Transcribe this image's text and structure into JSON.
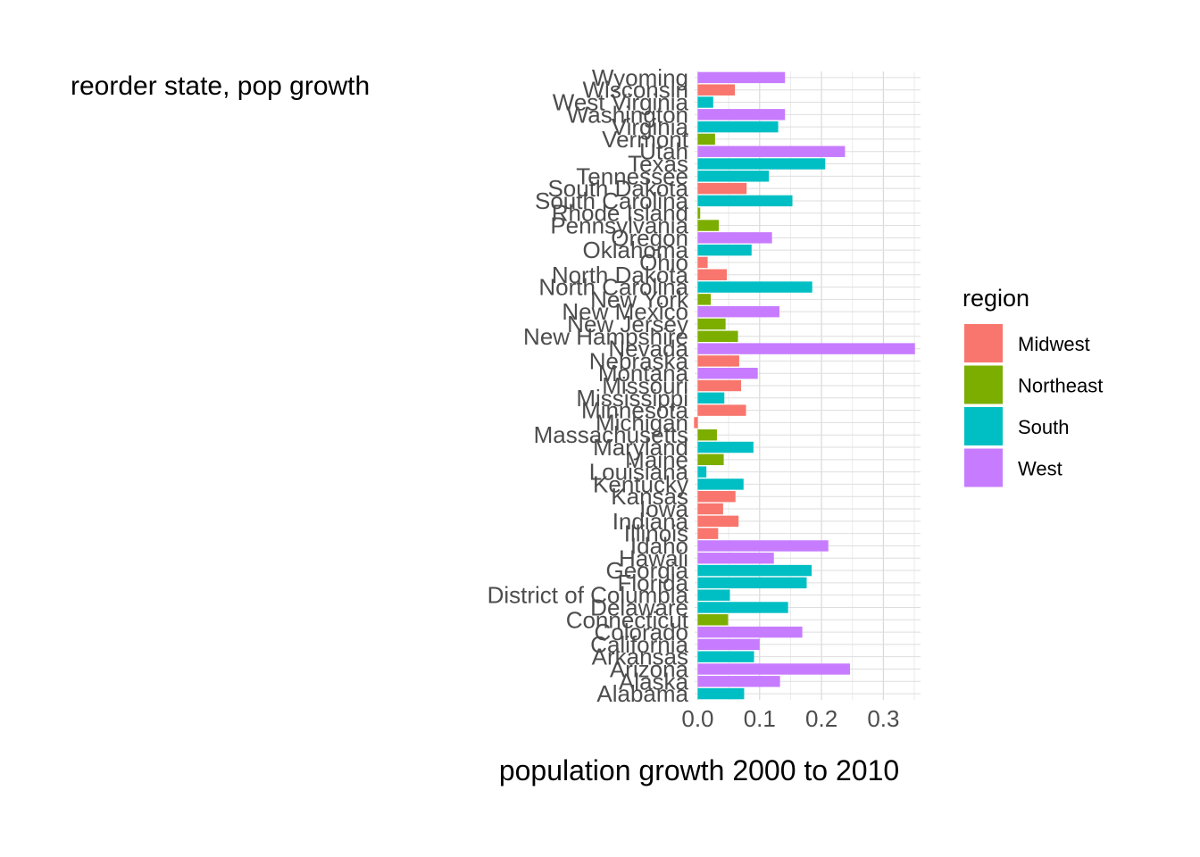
{
  "chart_data": {
    "type": "bar",
    "orientation": "horizontal",
    "title": "reorder state, pop growth",
    "xlabel": "population growth 2000 to 2010",
    "ylabel": "",
    "xlim": [
      -0.005,
      0.36
    ],
    "xticks": [
      "0.0",
      "0.1",
      "0.2",
      "0.3"
    ],
    "grid": true,
    "legend": {
      "title": "region",
      "position": "right",
      "entries": [
        {
          "name": "Midwest",
          "color": "#F8766D"
        },
        {
          "name": "Northeast",
          "color": "#7CAE00"
        },
        {
          "name": "South",
          "color": "#00BFC4"
        },
        {
          "name": "West",
          "color": "#C77CFF"
        }
      ]
    },
    "categories": [
      "Alabama",
      "Alaska",
      "Arizona",
      "Arkansas",
      "California",
      "Colorado",
      "Connecticut",
      "Delaware",
      "District of Columbia",
      "Florida",
      "Georgia",
      "Hawaii",
      "Idaho",
      "Illinois",
      "Indiana",
      "Iowa",
      "Kansas",
      "Kentucky",
      "Louisiana",
      "Maine",
      "Maryland",
      "Massachusetts",
      "Michigan",
      "Minnesota",
      "Mississippi",
      "Missouri",
      "Montana",
      "Nebraska",
      "Nevada",
      "New Hampshire",
      "New Jersey",
      "New Mexico",
      "New York",
      "North Carolina",
      "North Dakota",
      "Ohio",
      "Oklahoma",
      "Oregon",
      "Pennsylvania",
      "Rhode Island",
      "South Carolina",
      "South Dakota",
      "Tennessee",
      "Texas",
      "Utah",
      "Vermont",
      "Virginia",
      "Washington",
      "West Virginia",
      "Wisconsin",
      "Wyoming"
    ],
    "values": [
      0.075,
      0.133,
      0.246,
      0.091,
      0.1,
      0.169,
      0.049,
      0.146,
      0.052,
      0.176,
      0.184,
      0.123,
      0.211,
      0.033,
      0.066,
      0.041,
      0.061,
      0.074,
      0.014,
      0.042,
      0.09,
      0.031,
      -0.006,
      0.078,
      0.043,
      0.07,
      0.097,
      0.067,
      0.351,
      0.065,
      0.045,
      0.132,
      0.021,
      0.185,
      0.047,
      0.016,
      0.087,
      0.12,
      0.034,
      0.004,
      0.153,
      0.079,
      0.115,
      0.206,
      0.238,
      0.028,
      0.13,
      0.141,
      0.025,
      0.06,
      0.141
    ],
    "regions": [
      "South",
      "West",
      "West",
      "South",
      "West",
      "West",
      "Northeast",
      "South",
      "South",
      "South",
      "South",
      "West",
      "West",
      "Midwest",
      "Midwest",
      "Midwest",
      "Midwest",
      "South",
      "South",
      "Northeast",
      "South",
      "Northeast",
      "Midwest",
      "Midwest",
      "South",
      "Midwest",
      "West",
      "Midwest",
      "West",
      "Northeast",
      "Northeast",
      "West",
      "Northeast",
      "South",
      "Midwest",
      "Midwest",
      "South",
      "West",
      "Northeast",
      "Northeast",
      "South",
      "Midwest",
      "South",
      "South",
      "West",
      "Northeast",
      "South",
      "West",
      "South",
      "Midwest",
      "West"
    ]
  }
}
